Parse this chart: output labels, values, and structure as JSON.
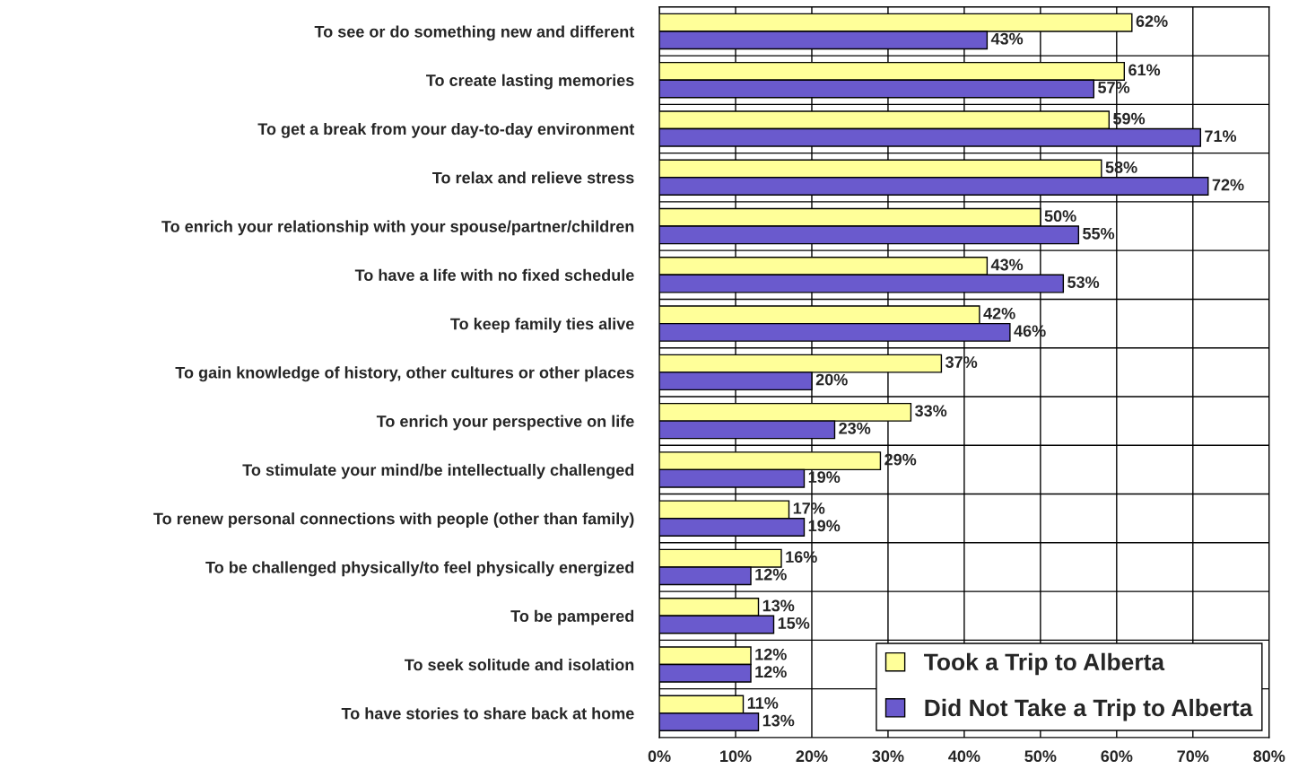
{
  "chart_data": {
    "type": "bar",
    "orientation": "horizontal",
    "categories": [
      "To see or do something new and different",
      "To create lasting memories",
      "To get a break from your day-to-day environment",
      "To relax and relieve stress",
      "To enrich your relationship with your spouse/partner/children",
      "To have a life with no fixed schedule",
      "To keep family ties alive",
      "To gain knowledge of history, other cultures or other places",
      "To enrich your perspective on life",
      "To stimulate your mind/be intellectually challenged",
      "To renew personal connections with people (other than family)",
      "To be challenged physically/to feel physically energized",
      "To be pampered",
      "To seek solitude and isolation",
      "To have stories to share back at home"
    ],
    "series": [
      {
        "name": "Took a Trip to Alberta",
        "color": "#ffff99",
        "values": [
          62,
          61,
          59,
          58,
          50,
          43,
          42,
          37,
          33,
          29,
          17,
          16,
          13,
          12,
          11
        ],
        "value_labels": [
          "62%",
          "61%",
          "59%",
          "58%",
          "50%",
          "43%",
          "42%",
          "37%",
          "33%",
          "29%",
          "17%",
          "16%",
          "13%",
          "12%",
          "11%"
        ]
      },
      {
        "name": "Did Not Take a Trip to Alberta",
        "color": "#6a5acd",
        "values": [
          43,
          57,
          71,
          72,
          55,
          53,
          46,
          20,
          23,
          19,
          19,
          12,
          15,
          12,
          13
        ],
        "value_labels": [
          "43%",
          "57%",
          "71%",
          "72%",
          "55%",
          "53%",
          "46%",
          "20%",
          "23%",
          "19%",
          "19%",
          "12%",
          "15%",
          "12%",
          "13%"
        ]
      }
    ],
    "xlim": [
      0,
      80
    ],
    "xticks": [
      {
        "value": 0,
        "label": "0%"
      },
      {
        "value": 10,
        "label": "10%"
      },
      {
        "value": 20,
        "label": "20%"
      },
      {
        "value": 30,
        "label": "30%"
      },
      {
        "value": 40,
        "label": "40%"
      },
      {
        "value": 50,
        "label": "50%"
      },
      {
        "value": 60,
        "label": "60%"
      },
      {
        "value": 70,
        "label": "70%"
      },
      {
        "value": 80,
        "label": "80%"
      }
    ],
    "grid": true,
    "legend": "bottom right"
  }
}
